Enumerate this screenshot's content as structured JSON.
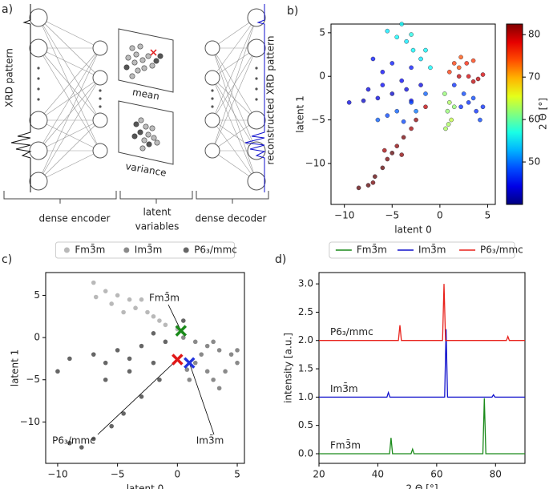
{
  "diagram": {
    "panel_label": "a)",
    "input_label": "XRD pattern",
    "output_label": "reconstructed XRD pattern",
    "mean_label": "mean",
    "variance_label": "variance",
    "encoder_label": "dense encoder",
    "latent_label": [
      "latent",
      "variables"
    ],
    "decoder_label": "dense decoder"
  },
  "chart_data": [
    {
      "type": "scatter",
      "panel_label": "b)",
      "xlabel": "latent 0",
      "ylabel": "latent 1",
      "xlim": [
        -11.4,
        5.8
      ],
      "ylim": [
        -14.7,
        6.0
      ],
      "xticks": [
        {
          "value": -10,
          "label": "−10"
        },
        {
          "value": -5,
          "label": "−5"
        },
        0,
        5
      ],
      "yticks": [
        {
          "value": -10,
          "label": "−10"
        },
        {
          "value": -5,
          "label": "−5"
        },
        0,
        5
      ],
      "x": [
        -1.5,
        -2.5,
        -3,
        -3.8,
        -4.5,
        -5,
        -5.5,
        -6,
        -6.8,
        -7.5,
        -8.5,
        -7,
        -4,
        -5.8,
        -2,
        -3.5,
        -5,
        -6.5,
        -8,
        -9.5,
        -4,
        -6,
        -7.5,
        -3,
        -1.5,
        -3,
        -4.5,
        -5.5,
        -6.5,
        -2.5,
        -3.8,
        -1,
        -2,
        -2.8,
        -3.5,
        -4.5,
        -3,
        -1.5,
        -5.5,
        -4,
        -3,
        -5,
        -7,
        -6,
        0.5,
        1,
        0.8,
        1.2,
        0.6,
        1.5,
        0.9,
        1,
        2,
        2.8,
        3.5,
        2.2,
        1.5,
        2,
        3,
        4,
        4.5,
        3.5,
        1.5,
        2.5,
        3,
        3.8,
        4.2,
        2.2,
        3.5,
        4.5
      ],
      "values": [
        -3.5,
        -5,
        -6,
        -7,
        -8,
        -8.8,
        -9.5,
        -10.5,
        -11.5,
        -12.5,
        -12.8,
        -12.2,
        -9,
        -8.5,
        -1,
        -1.5,
        -2,
        -2.5,
        -2.8,
        -3,
        -0.5,
        -1,
        -1.5,
        -2.8,
        -2,
        -3,
        -4,
        -4.5,
        -5,
        -4,
        -5.2,
        1,
        2,
        3,
        4,
        4.5,
        4.8,
        3,
        5.2,
        6,
        1,
        1.5,
        2,
        0.5,
        -2,
        -3,
        -4,
        -5,
        -6,
        -3.5,
        -5.5,
        0.5,
        1,
        1.5,
        1.8,
        2.2,
        1.5,
        0,
        0,
        -0.3,
        0.2,
        -0.6,
        -1,
        -2,
        -3,
        -4,
        -5,
        -3.5,
        -2.5,
        -3.5
      ],
      "color_values": [
        80,
        82,
        81,
        83,
        82,
        84,
        83,
        84,
        84,
        84,
        84,
        83,
        82,
        81,
        44,
        44,
        43,
        44,
        43,
        44,
        45,
        45,
        44,
        45,
        49,
        48,
        49,
        48,
        49,
        50,
        48,
        56,
        55,
        56,
        55,
        56,
        57,
        56,
        55,
        56,
        46,
        46,
        46,
        45,
        62,
        63,
        62,
        64,
        63,
        62,
        63,
        75,
        74,
        76,
        75,
        74,
        75,
        80,
        79,
        80,
        79,
        80,
        47,
        48,
        47,
        47,
        48,
        47,
        48,
        47
      ],
      "colormap": "jet",
      "clim": [
        40,
        82.5
      ],
      "cticks": [
        50,
        60,
        70,
        80
      ],
      "clabel": "2 Θ [°]"
    },
    {
      "type": "scatter",
      "panel_label": "c)",
      "xlabel": "latent 0",
      "ylabel": "latent 1",
      "xlim": [
        -11,
        5.6
      ],
      "ylim": [
        -14.9,
        7.7
      ],
      "legend": "top",
      "xticks": [
        {
          "value": -10,
          "label": "−10"
        },
        {
          "value": -5,
          "label": "−5"
        },
        0,
        5
      ],
      "yticks": [
        {
          "value": -10,
          "label": "−10"
        },
        {
          "value": -5,
          "label": "−5"
        },
        0,
        5
      ],
      "series": [
        {
          "name": "Fm3̄m",
          "color": "#b9b9b9",
          "x": [
            -7,
            -6,
            -5,
            -4,
            -3.5,
            -2.5,
            -1.5,
            -1,
            -5.5,
            -4.5,
            -3,
            -2,
            0,
            -6.8
          ],
          "values": [
            6.5,
            5.5,
            5,
            4.5,
            3.5,
            3,
            2,
            1.5,
            4,
            3,
            4.5,
            2.5,
            1,
            4.8
          ]
        },
        {
          "name": "Im3̄m",
          "color": "#8a8a8a",
          "x": [
            0.5,
            1.5,
            2.5,
            3.5,
            4.5,
            5,
            1.5,
            2.5,
            3,
            3.5,
            1,
            4,
            2,
            3,
            5,
            0.8
          ],
          "values": [
            0,
            -0.5,
            -1,
            -1.5,
            -2,
            -3,
            -3,
            -4,
            -5,
            -6,
            -5,
            -4,
            -2,
            -0.5,
            -1.5,
            -3.8
          ]
        },
        {
          "name": "P6₃/mmc",
          "color": "#666666",
          "x": [
            -1,
            -3,
            -5,
            -7,
            -9,
            -10,
            -2,
            -4,
            -6,
            -1.5,
            -3,
            -4.5,
            -5.5,
            -7,
            -9,
            -8,
            -4,
            -6,
            -2,
            0.5
          ],
          "values": [
            -0.5,
            -1,
            -1.5,
            -2,
            -2.5,
            -4,
            -3,
            -4,
            -5,
            -5,
            -7,
            -9,
            -10.5,
            -12,
            -12.5,
            -13,
            -2.5,
            -3,
            0.5,
            2
          ]
        }
      ],
      "markers": [
        {
          "x": 0.3,
          "y": 0.8,
          "color": "#1a8a1a"
        },
        {
          "x": 1,
          "y": -3,
          "color": "#2233dd"
        },
        {
          "x": 0,
          "y": -2.6,
          "color": "#e01818"
        }
      ]
    },
    {
      "type": "line",
      "panel_label": "d)",
      "xlabel": "2 Θ [°]",
      "ylabel": "intensity [a.u.]",
      "xlim": [
        20,
        90
      ],
      "ylim": [
        -0.17,
        3.2
      ],
      "legend": "top",
      "xticks": [
        20,
        40,
        60,
        80
      ],
      "yticks": [
        {
          "value": 0,
          "label": "0.0"
        },
        0.5,
        {
          "value": 1,
          "label": "1.0"
        },
        1.5,
        {
          "value": 2,
          "label": "2.0"
        },
        2.5,
        {
          "value": 3,
          "label": "3.0"
        }
      ],
      "series": [
        {
          "name": "Fm3̄m",
          "color": "#1a8a1a",
          "x": [
            20,
            44,
            44.5,
            45,
            51.3,
            51.8,
            52.3,
            75.7,
            76.2,
            76.7,
            90
          ],
          "values": [
            0,
            0,
            0.28,
            0,
            0,
            0.08,
            0,
            0,
            0.98,
            0,
            0
          ]
        },
        {
          "name": "Im3̄m",
          "color": "#1010cc",
          "x": [
            20,
            43.1,
            43.6,
            44.1,
            62.7,
            63.2,
            63.7,
            78.8,
            79.3,
            79.8,
            90
          ],
          "values": [
            1,
            1,
            1.08,
            1,
            1,
            2.2,
            1,
            1,
            1.04,
            1,
            1
          ]
        },
        {
          "name": "P6₃/mmc",
          "color": "#e8201a",
          "x": [
            20,
            47,
            47.5,
            48,
            62,
            62.5,
            63,
            83.7,
            84.2,
            84.7,
            90
          ],
          "values": [
            2,
            2,
            2.27,
            2,
            2,
            3.0,
            2,
            2,
            2.07,
            2,
            2
          ]
        }
      ]
    }
  ]
}
